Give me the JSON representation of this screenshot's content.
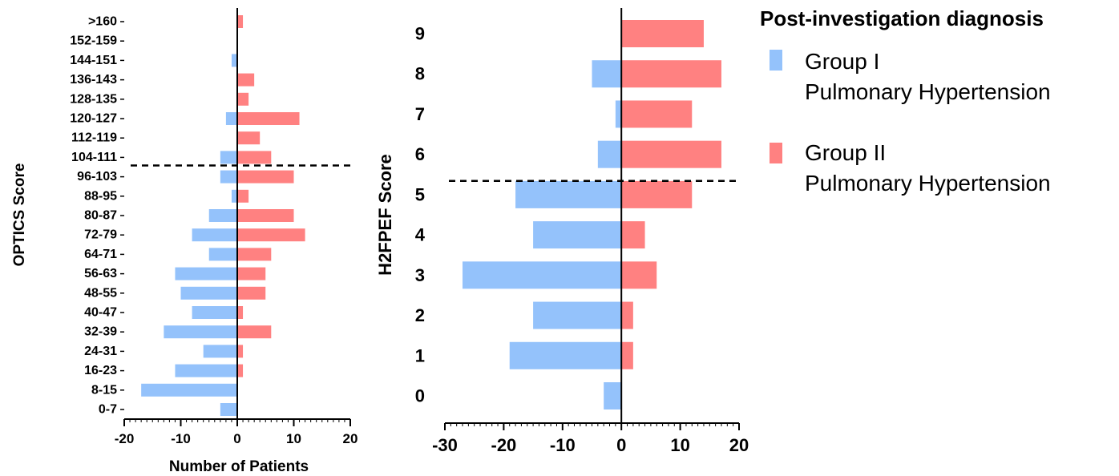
{
  "chart_data": [
    {
      "type": "bar",
      "orientation": "horizontal",
      "categories": [
        "0-7",
        "8-15",
        "16-23",
        "24-31",
        "32-39",
        "40-47",
        "48-55",
        "56-63",
        "64-71",
        "72-79",
        "80-87",
        "88-95",
        "96-103",
        "104-111",
        "112-119",
        "120-127",
        "128-135",
        "136-143",
        "144-151",
        "152-159",
        ">160"
      ],
      "series": [
        {
          "name": "Group I Pulmonary Hypertension",
          "color": "#94c2fb",
          "values": [
            -3,
            -17,
            -11,
            -6,
            -13,
            -8,
            -10,
            -11,
            -5,
            -8,
            -5,
            -1,
            -3,
            -3,
            0,
            -2,
            0,
            0,
            -1,
            0,
            0
          ]
        },
        {
          "name": "Group II Pulmonary Hypertension",
          "color": "#ff8181",
          "values": [
            0,
            0,
            1,
            1,
            6,
            1,
            5,
            5,
            6,
            12,
            10,
            2,
            10,
            6,
            4,
            11,
            2,
            3,
            0,
            0,
            1
          ]
        }
      ],
      "xlabel": "Number of Patients",
      "ylabel": "OPTICS Score",
      "xlim": [
        -20,
        20
      ],
      "xticks": [
        "-20",
        "-10",
        "0",
        "10",
        "20"
      ],
      "threshold_between": [
        "96-103",
        "104-111"
      ]
    },
    {
      "type": "bar",
      "orientation": "horizontal",
      "categories": [
        "0",
        "1",
        "2",
        "3",
        "4",
        "5",
        "6",
        "7",
        "8",
        "9"
      ],
      "series": [
        {
          "name": "Group I Pulmonary Hypertension",
          "color": "#94c2fb",
          "values": [
            -3,
            -19,
            -15,
            -27,
            -15,
            -18,
            -4,
            -1,
            -5,
            0
          ]
        },
        {
          "name": "Group II Pulmonary Hypertension",
          "color": "#ff8181",
          "values": [
            0,
            2,
            2,
            6,
            4,
            12,
            17,
            12,
            17,
            14
          ]
        }
      ],
      "xlabel": "",
      "ylabel": "H2FPEF Score",
      "xlim": [
        -30,
        20
      ],
      "xticks": [
        "-30",
        "-20",
        "-10",
        "0",
        "10",
        "20"
      ],
      "threshold_between": [
        "5",
        "6"
      ]
    }
  ],
  "legend": {
    "title": "Post-investigation diagnosis",
    "items": [
      {
        "line1": "Group I",
        "line2": "Pulmonary Hypertension",
        "color": "#94c2fb"
      },
      {
        "line1": "Group II",
        "line2": "Pulmonary Hypertension",
        "color": "#ff8181"
      }
    ],
    "placement": "right"
  }
}
